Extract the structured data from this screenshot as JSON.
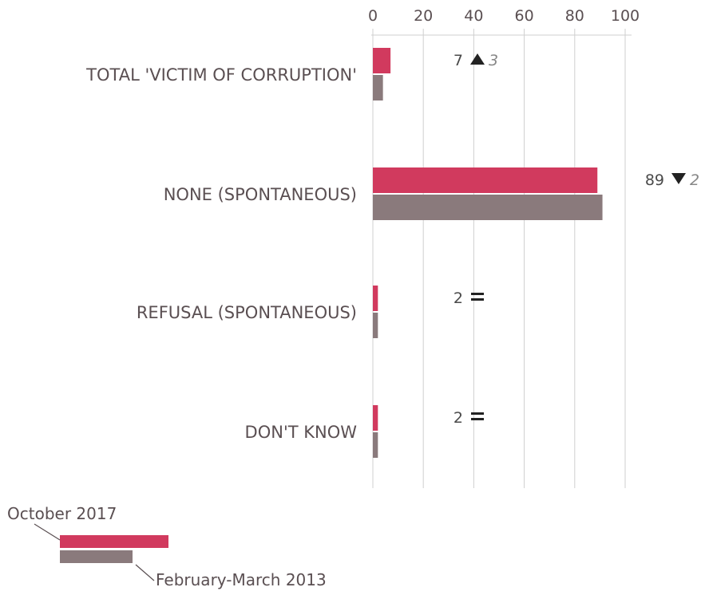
{
  "chart_data": {
    "type": "bar",
    "orientation": "horizontal",
    "xlim": [
      0,
      100
    ],
    "xticks": [
      "0",
      "20",
      "40",
      "60",
      "80",
      "100"
    ],
    "grid": true,
    "categories": [
      "TOTAL 'VICTIM OF CORRUPTION'",
      "NONE (SPONTANEOUS)",
      "REFUSAL (SPONTANEOUS)",
      "DON'T KNOW"
    ],
    "series": [
      {
        "name": "October 2017",
        "color": "#d13a5e",
        "values": [
          7,
          89,
          2,
          2
        ]
      },
      {
        "name": "February-March 2013",
        "color": "#8a7a7c",
        "values": [
          4,
          91,
          2,
          2
        ]
      }
    ],
    "annotations": [
      {
        "value": "7",
        "symbol": "▲",
        "change": "3"
      },
      {
        "value": "89",
        "symbol": "▼",
        "change": "2"
      },
      {
        "value": "2",
        "symbol": "=",
        "change": ""
      },
      {
        "value": "2",
        "symbol": "=",
        "change": ""
      }
    ],
    "legend_position": "bottom-left"
  }
}
